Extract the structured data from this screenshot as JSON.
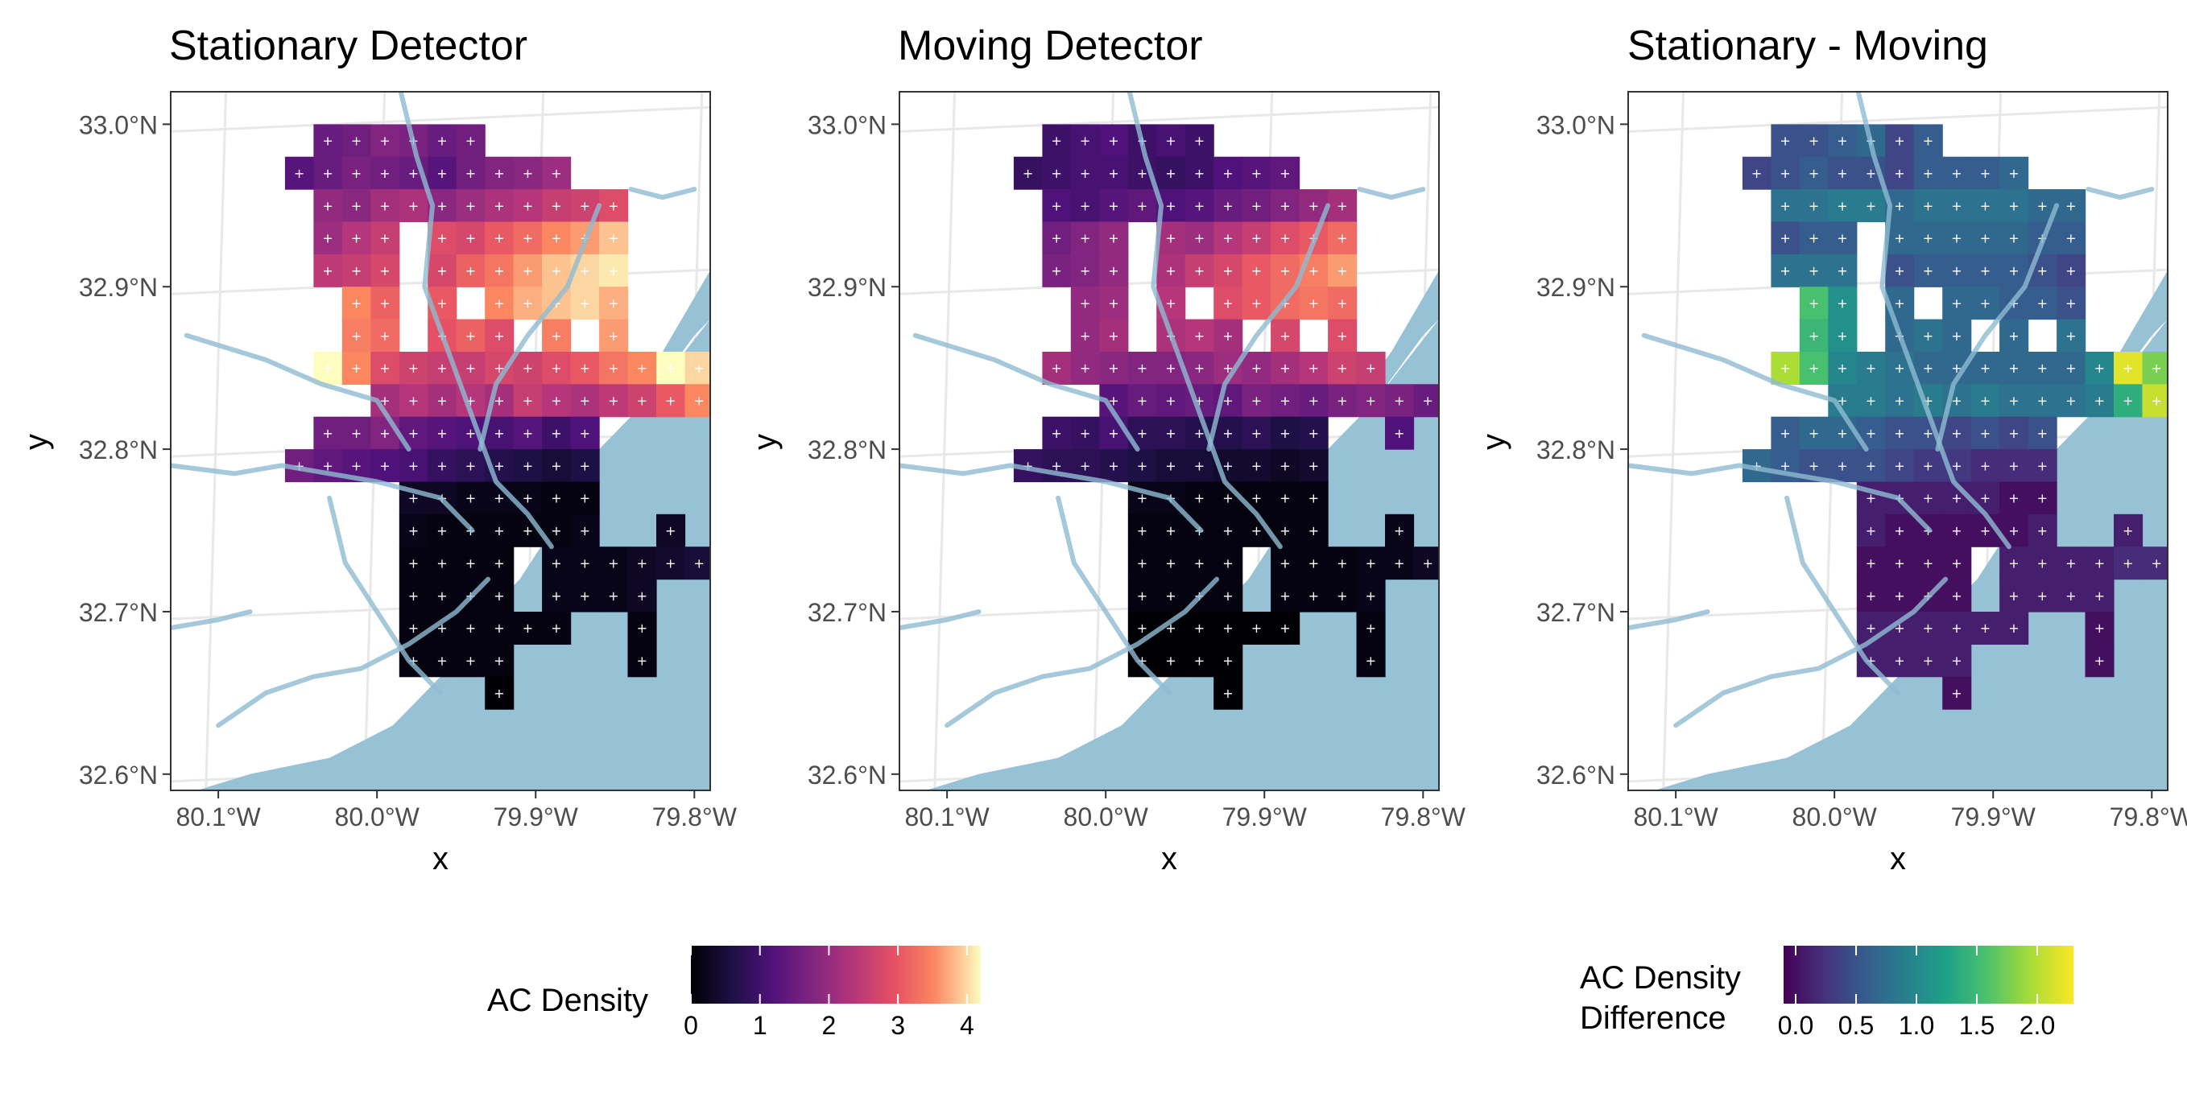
{
  "figure": {
    "panels": [
      {
        "title": "Stationary Detector",
        "xlabel": "x",
        "ylabel": "y",
        "color_scale": "magma"
      },
      {
        "title": "Moving Detector",
        "xlabel": "x",
        "ylabel": "y",
        "color_scale": "magma"
      },
      {
        "title": "Stationary - Moving",
        "xlabel": "x",
        "ylabel": "y",
        "color_scale": "viridis"
      }
    ],
    "legends": [
      {
        "title_lines": [
          "AC Density"
        ],
        "ticks": [
          "0",
          "1",
          "2",
          "3",
          "4"
        ],
        "range": [
          0,
          4.2
        ],
        "tick_values": [
          0,
          1,
          2,
          3,
          4
        ],
        "scale": "magma"
      },
      {
        "title_lines": [
          "AC Density",
          "Difference"
        ],
        "ticks": [
          "0.0",
          "0.5",
          "1.0",
          "1.5",
          "2.0"
        ],
        "range": [
          -0.1,
          2.3
        ],
        "tick_values": [
          0,
          0.5,
          1,
          1.5,
          2
        ],
        "scale": "viridis"
      }
    ],
    "colors": {
      "water": "#97c1d5",
      "river": "#8fbcd2",
      "grid": "#e8e8e8",
      "frame": "#333333",
      "marker": "#ffffff"
    }
  },
  "chart_data": {
    "type": "heatmap",
    "x_ticks": [
      "80.1°W",
      "80.0°W",
      "79.9°W",
      "79.8°W"
    ],
    "x_tick_values": [
      -80.1,
      -80.0,
      -79.9,
      -79.8
    ],
    "y_ticks": [
      "32.6°N",
      "32.7°N",
      "32.8°N",
      "32.9°N",
      "33.0°N"
    ],
    "y_tick_values": [
      32.6,
      32.7,
      32.8,
      32.9,
      33.0
    ],
    "xlim": [
      -80.13,
      -79.79
    ],
    "ylim": [
      32.59,
      33.02
    ],
    "cell_size_deg": [
      0.018,
      0.02
    ],
    "col_start_lon": -80.058,
    "row_start_lat": 32.64,
    "stationary_grid": [
      [
        null,
        1.5,
        1.6,
        1.8,
        1.7,
        1.5,
        1.6,
        null,
        null,
        null,
        null,
        null,
        null,
        null,
        null
      ],
      [
        1.3,
        1.5,
        1.7,
        1.6,
        1.5,
        1.3,
        1.6,
        1.8,
        1.9,
        2.1,
        null,
        null,
        null,
        null,
        null
      ],
      [
        null,
        2.0,
        1.9,
        2.2,
        2.3,
        1.9,
        2.1,
        2.3,
        2.4,
        2.6,
        2.7,
        2.9,
        null,
        null,
        null
      ],
      [
        null,
        2.1,
        2.4,
        2.6,
        null,
        2.9,
        2.8,
        3.1,
        3.3,
        3.6,
        3.7,
        3.9,
        null,
        null,
        null
      ],
      [
        null,
        2.5,
        2.6,
        2.8,
        null,
        2.8,
        3.2,
        3.4,
        3.7,
        3.9,
        4.0,
        4.1,
        null,
        null,
        null
      ],
      [
        null,
        null,
        3.6,
        3.2,
        null,
        3.1,
        null,
        3.6,
        3.8,
        3.9,
        4.0,
        3.8,
        null,
        null,
        null
      ],
      [
        null,
        null,
        3.5,
        3.3,
        null,
        3.0,
        3.2,
        2.9,
        null,
        3.5,
        null,
        3.7,
        null,
        null,
        null
      ],
      [
        null,
        4.2,
        3.6,
        2.9,
        2.7,
        2.6,
        2.6,
        2.8,
        2.7,
        2.9,
        3.1,
        3.4,
        3.6,
        4.2,
        4.0
      ],
      [
        null,
        null,
        null,
        2.2,
        2.4,
        2.2,
        2.4,
        2.2,
        2.6,
        2.4,
        2.3,
        2.5,
        2.7,
        3.1,
        3.6
      ],
      [
        null,
        1.6,
        1.6,
        1.8,
        1.4,
        1.3,
        1.2,
        1.1,
        1.3,
        1.0,
        1.2,
        null,
        null,
        null,
        null
      ],
      [
        1.6,
        1.4,
        1.3,
        1.2,
        1.1,
        0.9,
        0.8,
        0.7,
        0.6,
        0.5,
        0.6,
        null,
        null,
        null,
        null
      ],
      [
        null,
        null,
        null,
        null,
        0.3,
        0.3,
        0.2,
        0.2,
        0.2,
        0.1,
        0.1,
        null,
        null,
        null,
        null
      ],
      [
        null,
        null,
        null,
        null,
        0.2,
        0.1,
        0.1,
        0.1,
        0.1,
        0.1,
        0.2,
        null,
        null,
        0.3,
        null
      ],
      [
        null,
        null,
        null,
        null,
        0.1,
        0.1,
        0.1,
        0.1,
        null,
        0.2,
        0.2,
        0.2,
        0.3,
        0.4,
        0.5
      ],
      [
        null,
        null,
        null,
        null,
        0.1,
        0.1,
        0.1,
        0.1,
        null,
        0.2,
        0.2,
        0.2,
        0.3,
        null,
        null
      ],
      [
        null,
        null,
        null,
        null,
        0.1,
        0.1,
        0.1,
        0.1,
        0.1,
        0.1,
        null,
        null,
        0.1,
        null,
        null
      ],
      [
        null,
        null,
        null,
        null,
        0.1,
        0.1,
        0.1,
        0.1,
        null,
        null,
        null,
        null,
        0.1,
        null,
        null
      ],
      [
        null,
        null,
        null,
        null,
        null,
        null,
        null,
        0.0,
        null,
        null,
        null,
        null,
        null,
        null,
        null
      ]
    ],
    "moving_grid": [
      [
        null,
        1.0,
        1.1,
        1.2,
        1.0,
        1.1,
        1.0,
        null,
        null,
        null,
        null,
        null,
        null,
        null,
        null
      ],
      [
        0.9,
        1.0,
        1.1,
        1.1,
        1.0,
        0.9,
        1.0,
        1.2,
        1.3,
        1.4,
        null,
        null,
        null,
        null,
        null
      ],
      [
        null,
        1.2,
        1.1,
        1.3,
        1.4,
        1.2,
        1.3,
        1.5,
        1.6,
        1.8,
        2.0,
        2.2,
        null,
        null,
        null
      ],
      [
        null,
        1.6,
        1.8,
        2.0,
        null,
        2.2,
        2.1,
        2.4,
        2.6,
        2.9,
        3.1,
        3.3,
        null,
        null,
        null
      ],
      [
        null,
        1.7,
        1.8,
        2.0,
        null,
        2.3,
        2.6,
        2.8,
        3.1,
        3.3,
        3.5,
        3.7,
        null,
        null,
        null
      ],
      [
        null,
        null,
        2.0,
        2.1,
        null,
        2.4,
        null,
        2.9,
        3.1,
        3.3,
        3.4,
        3.3,
        null,
        null,
        null
      ],
      [
        null,
        null,
        2.0,
        2.2,
        null,
        2.3,
        2.4,
        2.2,
        null,
        2.8,
        null,
        2.9,
        null,
        null,
        null
      ],
      [
        null,
        2.2,
        2.0,
        1.9,
        1.8,
        1.8,
        1.9,
        2.1,
        2.0,
        2.2,
        2.4,
        2.7,
        2.6,
        null,
        null
      ],
      [
        null,
        null,
        null,
        1.3,
        1.5,
        1.4,
        1.5,
        1.4,
        1.7,
        1.6,
        1.5,
        1.7,
        1.8,
        1.7,
        1.5
      ],
      [
        null,
        1.0,
        0.9,
        1.1,
        0.8,
        0.8,
        0.7,
        0.7,
        0.8,
        0.6,
        0.7,
        null,
        null,
        1.2,
        null
      ],
      [
        0.9,
        0.8,
        0.8,
        0.7,
        0.6,
        0.5,
        0.5,
        0.4,
        0.4,
        0.3,
        0.4,
        null,
        null,
        null,
        null
      ],
      [
        null,
        null,
        null,
        null,
        0.2,
        0.2,
        0.1,
        0.1,
        0.1,
        0.1,
        0.1,
        null,
        null,
        null,
        null
      ],
      [
        null,
        null,
        null,
        null,
        0.1,
        0.1,
        0.1,
        0.1,
        0.1,
        0.1,
        0.1,
        null,
        null,
        0.2,
        null
      ],
      [
        null,
        null,
        null,
        null,
        0.1,
        0.1,
        0.1,
        0.1,
        null,
        0.1,
        0.1,
        0.1,
        0.2,
        0.2,
        0.3
      ],
      [
        null,
        null,
        null,
        null,
        0.1,
        0.1,
        0.1,
        0.1,
        null,
        0.1,
        0.1,
        0.1,
        0.2,
        null,
        null
      ],
      [
        null,
        null,
        null,
        null,
        0.0,
        0.0,
        0.0,
        0.0,
        0.0,
        0.0,
        null,
        null,
        0.1,
        null,
        null
      ],
      [
        null,
        null,
        null,
        null,
        0.0,
        0.0,
        0.0,
        0.0,
        null,
        null,
        null,
        null,
        0.1,
        null,
        null
      ],
      [
        null,
        null,
        null,
        null,
        null,
        null,
        null,
        0.0,
        null,
        null,
        null,
        null,
        null,
        null,
        null
      ]
    ],
    "difference_grid": [
      [
        null,
        0.5,
        0.5,
        0.6,
        0.7,
        0.4,
        0.6,
        null,
        null,
        null,
        null,
        null,
        null,
        null,
        null
      ],
      [
        0.4,
        0.5,
        0.6,
        0.5,
        0.5,
        0.4,
        0.6,
        0.6,
        0.6,
        0.7,
        null,
        null,
        null,
        null,
        null
      ],
      [
        null,
        0.8,
        0.8,
        0.9,
        0.9,
        0.7,
        0.8,
        0.8,
        0.8,
        0.8,
        0.7,
        0.7,
        null,
        null,
        null
      ],
      [
        null,
        0.5,
        0.6,
        0.6,
        null,
        0.7,
        0.7,
        0.7,
        0.7,
        0.7,
        0.6,
        0.6,
        null,
        null,
        null
      ],
      [
        null,
        0.8,
        0.8,
        0.8,
        null,
        0.5,
        0.6,
        0.6,
        0.6,
        0.6,
        0.5,
        0.4,
        null,
        null,
        null
      ],
      [
        null,
        null,
        1.6,
        1.1,
        null,
        0.7,
        null,
        0.7,
        0.7,
        0.6,
        0.6,
        0.5,
        null,
        null,
        null
      ],
      [
        null,
        null,
        1.5,
        1.1,
        null,
        0.7,
        0.8,
        0.7,
        null,
        0.7,
        null,
        0.8,
        null,
        null,
        null
      ],
      [
        null,
        2.0,
        1.6,
        1.0,
        0.9,
        0.8,
        0.7,
        0.7,
        0.7,
        0.7,
        0.7,
        0.7,
        1.0,
        2.2,
        1.8
      ],
      [
        null,
        null,
        null,
        0.9,
        0.9,
        0.8,
        0.9,
        0.8,
        0.9,
        0.8,
        0.8,
        0.8,
        0.9,
        1.4,
        2.1
      ],
      [
        null,
        0.6,
        0.7,
        0.7,
        0.6,
        0.5,
        0.5,
        0.4,
        0.5,
        0.4,
        0.5,
        null,
        null,
        null,
        null
      ],
      [
        0.7,
        0.6,
        0.5,
        0.5,
        0.5,
        0.4,
        0.3,
        0.3,
        0.2,
        0.2,
        0.2,
        null,
        null,
        null,
        null
      ],
      [
        null,
        null,
        null,
        null,
        0.1,
        0.1,
        0.1,
        0.1,
        0.1,
        0.0,
        0.0,
        null,
        null,
        null,
        null
      ],
      [
        null,
        null,
        null,
        null,
        0.1,
        0.0,
        0.0,
        0.0,
        0.0,
        0.0,
        0.1,
        null,
        null,
        0.1,
        null
      ],
      [
        null,
        null,
        null,
        null,
        0.0,
        0.0,
        0.0,
        0.0,
        null,
        0.1,
        0.1,
        0.1,
        0.1,
        0.2,
        0.2
      ],
      [
        null,
        null,
        null,
        null,
        0.0,
        0.0,
        0.0,
        0.0,
        null,
        0.1,
        0.1,
        0.1,
        0.1,
        null,
        null
      ],
      [
        null,
        null,
        null,
        null,
        0.1,
        0.1,
        0.1,
        0.1,
        0.1,
        0.1,
        null,
        null,
        0.0,
        null,
        null
      ],
      [
        null,
        null,
        null,
        null,
        0.1,
        0.1,
        0.1,
        0.1,
        null,
        null,
        null,
        null,
        0.0,
        null,
        null
      ],
      [
        null,
        null,
        null,
        null,
        null,
        null,
        null,
        0.0,
        null,
        null,
        null,
        null,
        null,
        null,
        null
      ]
    ]
  }
}
